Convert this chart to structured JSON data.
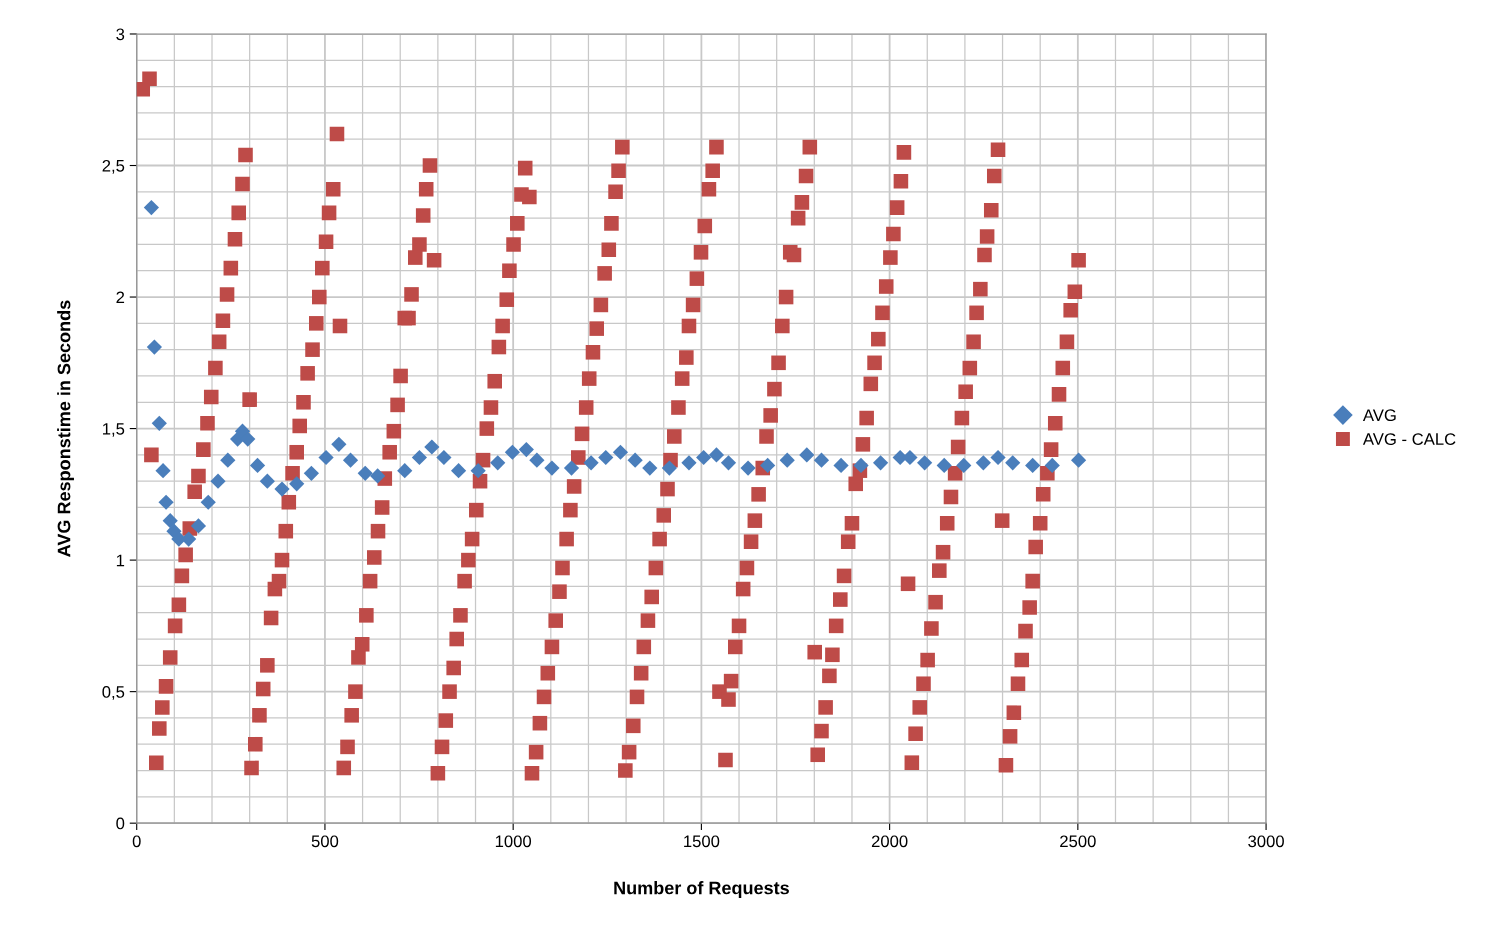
{
  "chart_data": {
    "type": "scatter",
    "xlabel": "Number of Requests",
    "ylabel": "AVG Responstime in Seconds",
    "xlim": [
      0,
      3000
    ],
    "xticks": [
      0,
      500,
      1000,
      1500,
      2000,
      2500,
      3000
    ],
    "ylim": [
      0,
      3
    ],
    "yticks": [
      0,
      {
        "value": 0.5,
        "label": "0,5"
      },
      1,
      {
        "value": 1.5,
        "label": "1,5"
      },
      2,
      {
        "value": 2.5,
        "label": "2,5"
      },
      3
    ],
    "grid": true,
    "legend": "right",
    "series": [
      {
        "name": "AVG",
        "color": "#4a7ebb",
        "marker": "diamond",
        "x": [
          39,
          47,
          60,
          70,
          78,
          89,
          99,
          112,
          138,
          164,
          190,
          216,
          242,
          268,
          281,
          295,
          321,
          347,
          386,
          425,
          464,
          503,
          537,
          568,
          607,
          640,
          712,
          751,
          784,
          816,
          855,
          907,
          959,
          998,
          1035,
          1063,
          1103,
          1155,
          1207,
          1246,
          1285,
          1324,
          1363,
          1415,
          1467,
          1506,
          1540,
          1572,
          1624,
          1676,
          1728,
          1780,
          1819,
          1871,
          1924,
          1976,
          2028,
          2054,
          2093,
          2145,
          2197,
          2249,
          2288,
          2327,
          2380,
          2432,
          2502
        ],
        "values": [
          2.34,
          1.81,
          1.52,
          1.34,
          1.22,
          1.15,
          1.11,
          1.08,
          1.08,
          1.13,
          1.22,
          1.3,
          1.38,
          1.46,
          1.49,
          1.46,
          1.36,
          1.3,
          1.27,
          1.29,
          1.33,
          1.39,
          1.44,
          1.38,
          1.33,
          1.32,
          1.34,
          1.39,
          1.43,
          1.39,
          1.34,
          1.34,
          1.37,
          1.41,
          1.42,
          1.38,
          1.35,
          1.35,
          1.37,
          1.39,
          1.41,
          1.38,
          1.35,
          1.35,
          1.37,
          1.39,
          1.4,
          1.37,
          1.35,
          1.36,
          1.38,
          1.4,
          1.38,
          1.36,
          1.36,
          1.37,
          1.39,
          1.39,
          1.37,
          1.36,
          1.36,
          1.37,
          1.39,
          1.37,
          1.36,
          1.36,
          1.38
        ]
      },
      {
        "name": "AVG - CALC",
        "color": "#be4b48",
        "marker": "square",
        "x": [
          16,
          34,
          39,
          52,
          60,
          68,
          78,
          89,
          102,
          112,
          120,
          130,
          141,
          154,
          164,
          177,
          188,
          198,
          209,
          219,
          229,
          240,
          250,
          261,
          271,
          281,
          289,
          300,
          305,
          315,
          326,
          336,
          347,
          357,
          367,
          378,
          386,
          396,
          404,
          414,
          425,
          433,
          443,
          454,
          467,
          477,
          485,
          493,
          503,
          511,
          522,
          532,
          540,
          550,
          560,
          571,
          581,
          589,
          599,
          610,
          620,
          631,
          641,
          652,
          659,
          672,
          683,
          693,
          701,
          712,
          722,
          730,
          740,
          751,
          761,
          769,
          779,
          790,
          800,
          811,
          821,
          831,
          842,
          850,
          860,
          871,
          881,
          891,
          902,
          912,
          920,
          930,
          941,
          951,
          962,
          972,
          983,
          990,
          1001,
          1011,
          1022,
          1032,
          1043,
          1050,
          1061,
          1071,
          1082,
          1092,
          1103,
          1113,
          1123,
          1131,
          1142,
          1152,
          1162,
          1173,
          1183,
          1194,
          1202,
          1212,
          1222,
          1233,
          1243,
          1254,
          1261,
          1272,
          1280,
          1290,
          1298,
          1308,
          1319,
          1329,
          1340,
          1347,
          1358,
          1368,
          1379,
          1389,
          1400,
          1410,
          1418,
          1428,
          1439,
          1449,
          1460,
          1467,
          1478,
          1488,
          1499,
          1509,
          1520,
          1530,
          1540,
          1548,
          1564,
          1572,
          1579,
          1590,
          1600,
          1611,
          1621,
          1632,
          1642,
          1652,
          1663,
          1673,
          1684,
          1694,
          1705,
          1715,
          1725,
          1736,
          1746,
          1757,
          1767,
          1778,
          1788,
          1801,
          1809,
          1819,
          1830,
          1840,
          1848,
          1858,
          1869,
          1879,
          1890,
          1900,
          1910,
          1921,
          1929,
          1939,
          1950,
          1960,
          1970,
          1981,
          1991,
          2002,
          2010,
          2020,
          2030,
          2038,
          2049,
          2059,
          2069,
          2080,
          2090,
          2101,
          2111,
          2122,
          2132,
          2142,
          2153,
          2163,
          2174,
          2182,
          2192,
          2202,
          2213,
          2223,
          2231,
          2241,
          2252,
          2259,
          2270,
          2278,
          2288,
          2299,
          2309,
          2320,
          2330,
          2341,
          2351,
          2361,
          2372,
          2380,
          2388,
          2400,
          2408,
          2419,
          2429,
          2440,
          2450,
          2460,
          2471,
          2481,
          2492,
          2502
        ],
        "values": [
          2.79,
          2.83,
          1.4,
          0.23,
          0.36,
          0.44,
          0.52,
          0.63,
          0.75,
          0.83,
          0.94,
          1.02,
          1.12,
          1.26,
          1.32,
          1.42,
          1.52,
          1.62,
          1.73,
          1.83,
          1.91,
          2.01,
          2.11,
          2.22,
          2.32,
          2.43,
          2.54,
          1.61,
          0.21,
          0.3,
          0.41,
          0.51,
          0.6,
          0.78,
          0.89,
          0.92,
          1.0,
          1.11,
          1.22,
          1.33,
          1.41,
          1.51,
          1.6,
          1.71,
          1.8,
          1.9,
          2.0,
          2.11,
          2.21,
          2.32,
          2.41,
          2.62,
          1.89,
          0.21,
          0.29,
          0.41,
          0.5,
          0.63,
          0.68,
          0.79,
          0.92,
          1.01,
          1.11,
          1.2,
          1.31,
          1.41,
          1.49,
          1.59,
          1.7,
          1.92,
          1.92,
          2.01,
          2.15,
          2.2,
          2.31,
          2.41,
          2.5,
          2.14,
          0.19,
          0.29,
          0.39,
          0.5,
          0.59,
          0.7,
          0.79,
          0.92,
          1.0,
          1.08,
          1.19,
          1.3,
          1.38,
          1.5,
          1.58,
          1.68,
          1.81,
          1.89,
          1.99,
          2.1,
          2.2,
          2.28,
          2.39,
          2.49,
          2.38,
          0.19,
          0.27,
          0.38,
          0.48,
          0.57,
          0.67,
          0.77,
          0.88,
          0.97,
          1.08,
          1.19,
          1.28,
          1.39,
          1.48,
          1.58,
          1.69,
          1.79,
          1.88,
          1.97,
          2.09,
          2.18,
          2.28,
          2.4,
          2.48,
          2.57,
          0.2,
          0.27,
          0.37,
          0.48,
          0.57,
          0.67,
          0.77,
          0.86,
          0.97,
          1.08,
          1.17,
          1.27,
          1.38,
          1.47,
          1.58,
          1.69,
          1.77,
          1.89,
          1.97,
          2.07,
          2.17,
          2.27,
          2.41,
          2.48,
          2.57,
          0.5,
          0.24,
          0.47,
          0.54,
          0.67,
          0.75,
          0.89,
          0.97,
          1.07,
          1.15,
          1.25,
          1.35,
          1.47,
          1.55,
          1.65,
          1.75,
          1.89,
          2.0,
          2.17,
          2.16,
          2.3,
          2.36,
          2.46,
          2.57,
          0.65,
          0.26,
          0.35,
          0.44,
          0.56,
          0.64,
          0.75,
          0.85,
          0.94,
          1.07,
          1.14,
          1.29,
          1.34,
          1.44,
          1.54,
          1.67,
          1.75,
          1.84,
          1.94,
          2.04,
          2.15,
          2.24,
          2.34,
          2.44,
          2.55,
          0.91,
          0.23,
          0.34,
          0.44,
          0.53,
          0.62,
          0.74,
          0.84,
          0.96,
          1.03,
          1.14,
          1.24,
          1.33,
          1.43,
          1.54,
          1.64,
          1.73,
          1.83,
          1.94,
          2.03,
          2.16,
          2.23,
          2.33,
          2.46,
          2.56,
          1.15,
          0.22,
          0.33,
          0.42,
          0.53,
          0.62,
          0.73,
          0.82,
          0.92,
          1.05,
          1.14,
          1.25,
          1.33,
          1.42,
          1.52,
          1.63,
          1.73,
          1.83,
          1.95,
          2.02,
          2.14
        ]
      }
    ]
  }
}
